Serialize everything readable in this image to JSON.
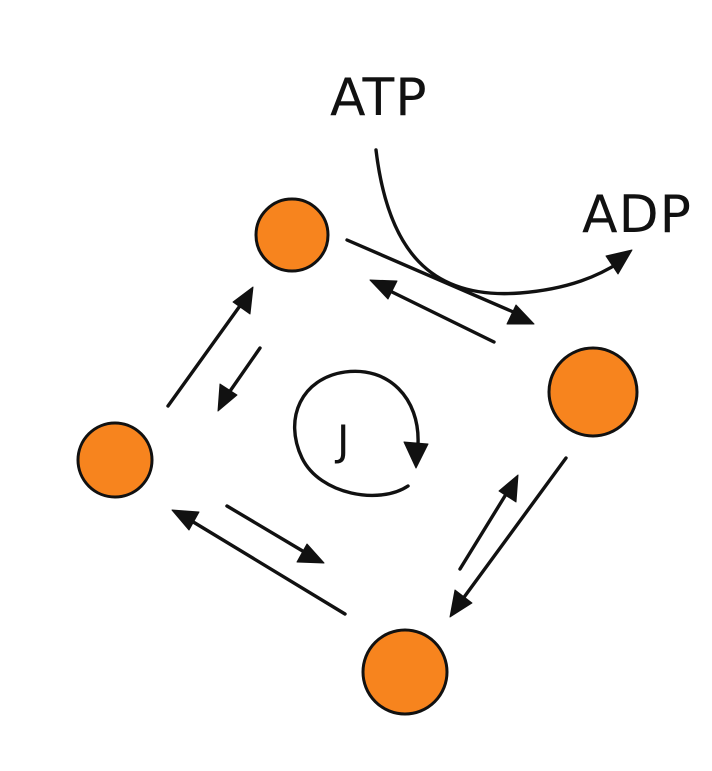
{
  "colors": {
    "node_fill": "#f7841e",
    "ink": "#111111",
    "background": "#ffffff"
  },
  "labels": {
    "atp": "ATP",
    "adp": "ADP",
    "cycle_current": "J"
  },
  "nodes": [
    {
      "id": "node-top",
      "label": ""
    },
    {
      "id": "node-right",
      "label": ""
    },
    {
      "id": "node-bottom",
      "label": ""
    },
    {
      "id": "node-left",
      "label": ""
    }
  ],
  "icons": {
    "cycle": "circular-arrow-clockwise-icon",
    "transition": "reversible-arrow-pair-icon",
    "coupling": "curved-arrow-icon"
  }
}
